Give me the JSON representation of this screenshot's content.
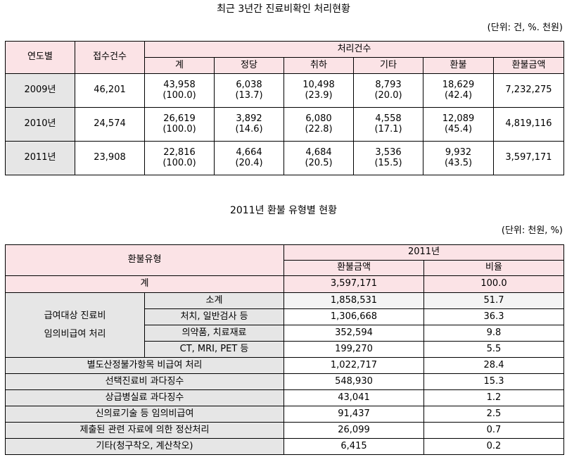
{
  "table1": {
    "title": "최근 3년간 진료비확인 처리현황",
    "unit": "(단위: 건, %. 천원)",
    "headers": {
      "year": "연도별",
      "received": "접수건수",
      "processed": "처리건수",
      "sub": [
        "계",
        "정당",
        "취하",
        "기타",
        "환불",
        "환불금액"
      ]
    },
    "rows": [
      {
        "year": "2009년",
        "received": "46,201",
        "counts": [
          "43,958",
          "6,038",
          "10,498",
          "8,793",
          "18,629"
        ],
        "pcts": [
          "(100.0)",
          "(13.7)",
          "(23.9)",
          "(20.0)",
          "(42.4)"
        ],
        "amount": "7,232,275"
      },
      {
        "year": "2010년",
        "received": "24,574",
        "counts": [
          "26,619",
          "3,892",
          "6,080",
          "4,558",
          "12,089"
        ],
        "pcts": [
          "(100.0)",
          "(14.6)",
          "(22.8)",
          "(17.1)",
          "(45.4)"
        ],
        "amount": "4,819,116"
      },
      {
        "year": "2011년",
        "received": "23,908",
        "counts": [
          "22,816",
          "4,664",
          "4,684",
          "3,536",
          "9,932"
        ],
        "pcts": [
          "(100.0)",
          "(20.4)",
          "(20.5)",
          "(15.5)",
          "(43.5)"
        ],
        "amount": "3,597,171"
      }
    ]
  },
  "table2": {
    "title": "2011년 환불 유형별 현황",
    "unit": "(단위: 천원, %)",
    "headers": {
      "type": "환불유형",
      "year": "2011년",
      "amount": "환불금액",
      "ratio": "비율"
    },
    "total": {
      "label": "계",
      "amount": "3,597,171",
      "ratio": "100.0"
    },
    "group": {
      "label_line1": "급여대상 진료비",
      "label_line2": "임의비급여 처리",
      "items": [
        {
          "label": "소계",
          "amount": "1,858,531",
          "ratio": "51.7"
        },
        {
          "label": "처치, 일반검사 등",
          "amount": "1,306,668",
          "ratio": "36.3"
        },
        {
          "label": "의약품, 치료재료",
          "amount": "352,594",
          "ratio": "9.8"
        },
        {
          "label": "CT, MRI, PET 등",
          "amount": "199,270",
          "ratio": "5.5"
        }
      ]
    },
    "rows": [
      {
        "label": "별도산정불가항목 비급여 처리",
        "amount": "1,022,717",
        "ratio": "28.4"
      },
      {
        "label": "선택진료비 과다징수",
        "amount": "548,930",
        "ratio": "15.3"
      },
      {
        "label": "상급병실료 과다징수",
        "amount": "43,041",
        "ratio": "1.2"
      },
      {
        "label": "신의료기술 등 임의비급여",
        "amount": "91,437",
        "ratio": "2.5"
      },
      {
        "label": "제출된 관련 자료에 의한 정산처리",
        "amount": "26,099",
        "ratio": "0.7"
      },
      {
        "label": "기타(청구착오, 계산착오)",
        "amount": "6,415",
        "ratio": "0.2"
      }
    ]
  }
}
